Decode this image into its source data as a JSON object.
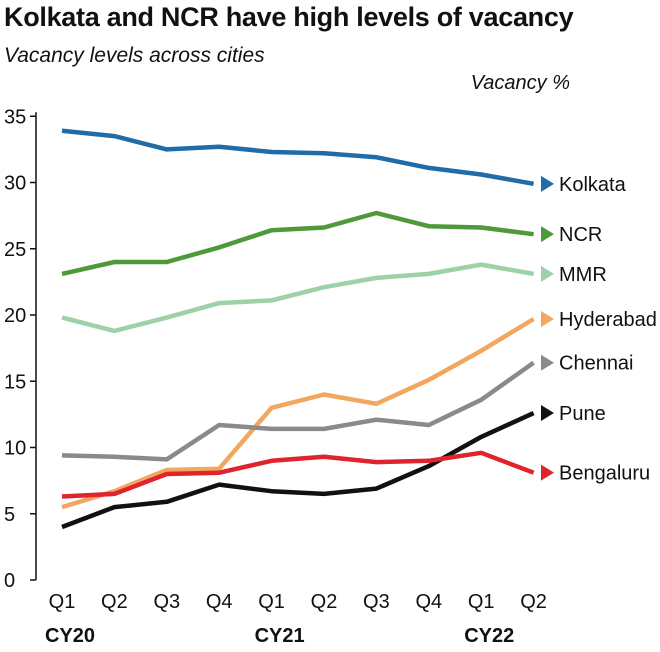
{
  "chart_data": {
    "type": "line",
    "title": "Kolkata and NCR have high levels of vacancy",
    "subtitle": "Vacancy levels across cities",
    "ylabel": "Vacancy %",
    "xlabel": "",
    "ylim": [
      0,
      35
    ],
    "yticks": [
      0,
      5,
      10,
      15,
      20,
      25,
      30,
      35
    ],
    "categories": [
      "Q1",
      "Q2",
      "Q3",
      "Q4",
      "Q1",
      "Q2",
      "Q3",
      "Q4",
      "Q1",
      "Q2"
    ],
    "year_labels": [
      {
        "label": "CY20",
        "index": 0
      },
      {
        "label": "CY21",
        "index": 4
      },
      {
        "label": "CY22",
        "index": 8
      }
    ],
    "grid": false,
    "legend": "end-of-line labels",
    "series": [
      {
        "name": "Kolkata",
        "color": "#1f6ca8",
        "values": [
          33.9,
          33.5,
          32.5,
          32.7,
          32.3,
          32.2,
          31.9,
          31.1,
          30.6,
          29.9
        ]
      },
      {
        "name": "NCR",
        "color": "#4e9a3a",
        "values": [
          23.1,
          24.0,
          24.0,
          25.1,
          26.4,
          26.6,
          27.7,
          26.7,
          26.6,
          26.1
        ]
      },
      {
        "name": "MMR",
        "color": "#9dd1a8",
        "values": [
          19.8,
          18.8,
          19.8,
          20.9,
          21.1,
          22.1,
          22.8,
          23.1,
          23.8,
          23.1
        ]
      },
      {
        "name": "Hyderabad",
        "color": "#f2a65e",
        "values": [
          5.5,
          6.7,
          8.3,
          8.4,
          13.0,
          14.0,
          13.3,
          15.1,
          17.3,
          19.7
        ]
      },
      {
        "name": "Chennai",
        "color": "#8a8a8a",
        "values": [
          9.4,
          9.3,
          9.1,
          11.7,
          11.4,
          11.4,
          12.1,
          11.7,
          13.6,
          16.4
        ]
      },
      {
        "name": "Pune",
        "color": "#111111",
        "values": [
          4.0,
          5.5,
          5.9,
          7.2,
          6.7,
          6.5,
          6.9,
          8.6,
          10.8,
          12.6
        ]
      },
      {
        "name": "Bengaluru",
        "color": "#e0242e",
        "values": [
          6.3,
          6.5,
          8.0,
          8.1,
          9.0,
          9.3,
          8.9,
          9.0,
          9.6,
          8.1
        ]
      }
    ]
  }
}
